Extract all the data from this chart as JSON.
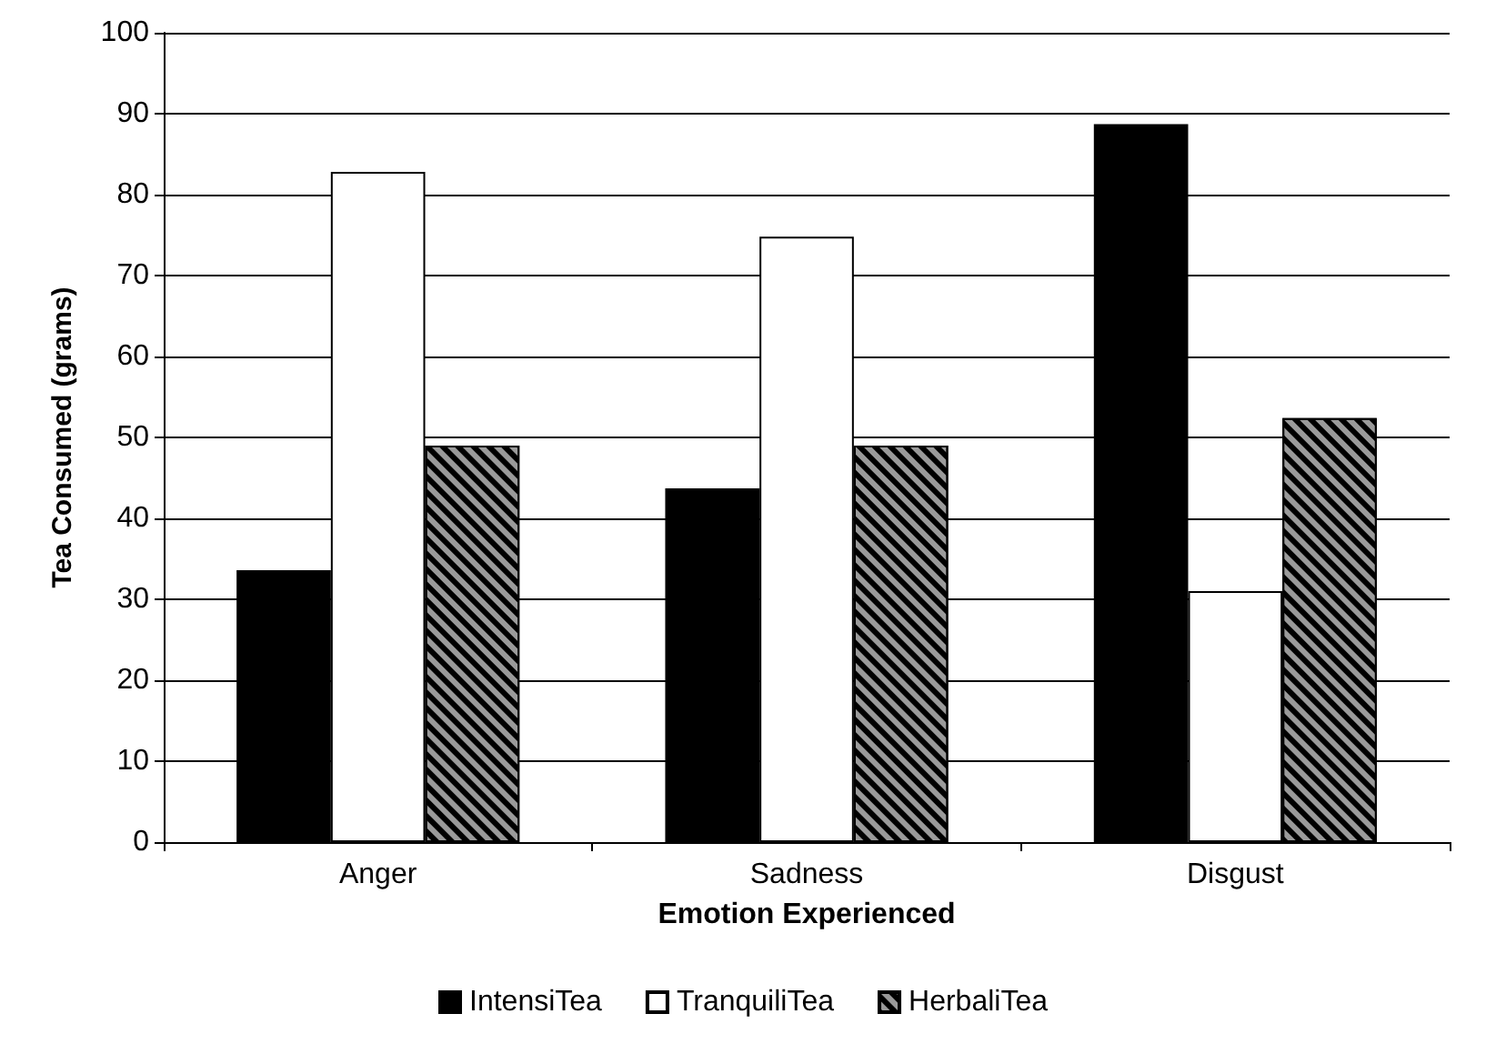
{
  "chart_data": {
    "type": "bar",
    "xlabel": "Emotion Experienced",
    "ylabel": "Tea Consumed (grams)",
    "categories": [
      "Anger",
      "Sadness",
      "Disgust"
    ],
    "series": [
      {
        "name": "IntensiTea",
        "color": "#000000",
        "values": [
          33.6,
          43.7,
          88.7
        ]
      },
      {
        "name": "TranquiliTea",
        "color": "#ffffff",
        "values": [
          82.8,
          74.8,
          31
        ]
      },
      {
        "name": "HerbaliTea",
        "color": "#9a9a9a",
        "values": [
          49,
          49,
          52.4
        ]
      }
    ],
    "ylim": [
      0,
      100
    ],
    "yticks": [
      0,
      10,
      20,
      30,
      40,
      50,
      60,
      70,
      80,
      90,
      100
    ],
    "grid": "y",
    "legend": "bottom"
  }
}
